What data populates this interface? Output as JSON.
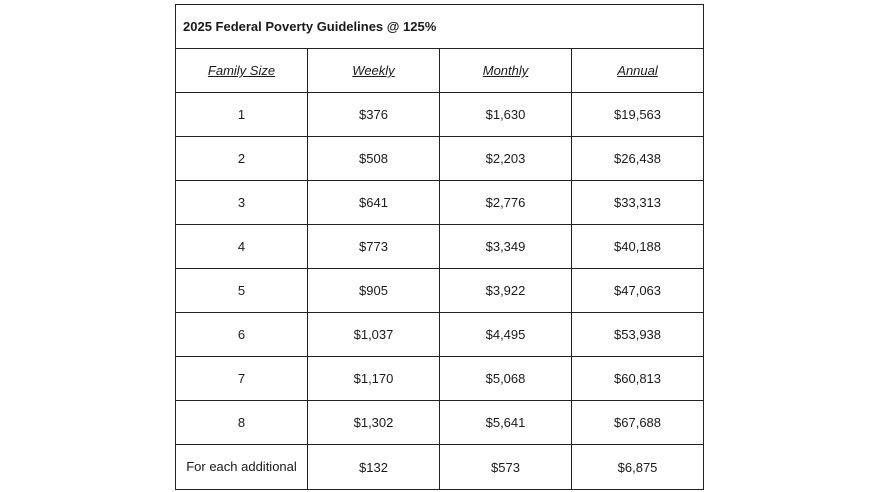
{
  "table": {
    "title": "2025 Federal Poverty Guidelines @ 125%",
    "headers": [
      "Family Size",
      "Weekly",
      "Monthly",
      "Annual"
    ],
    "rows": [
      [
        "1",
        "$376",
        "$1,630",
        "$19,563"
      ],
      [
        "2",
        "$508",
        "$2,203",
        "$26,438"
      ],
      [
        "3",
        "$641",
        "$2,776",
        "$33,313"
      ],
      [
        "4",
        "$773",
        "$3,349",
        "$40,188"
      ],
      [
        "5",
        "$905",
        "$3,922",
        "$47,063"
      ],
      [
        "6",
        "$1,037",
        "$4,495",
        "$53,938"
      ],
      [
        "7",
        "$1,170",
        "$5,068",
        "$60,813"
      ],
      [
        "8",
        "$1,302",
        "$5,641",
        "$67,688"
      ],
      [
        "For each additional",
        "$132",
        "$573",
        "$6,875"
      ]
    ]
  }
}
